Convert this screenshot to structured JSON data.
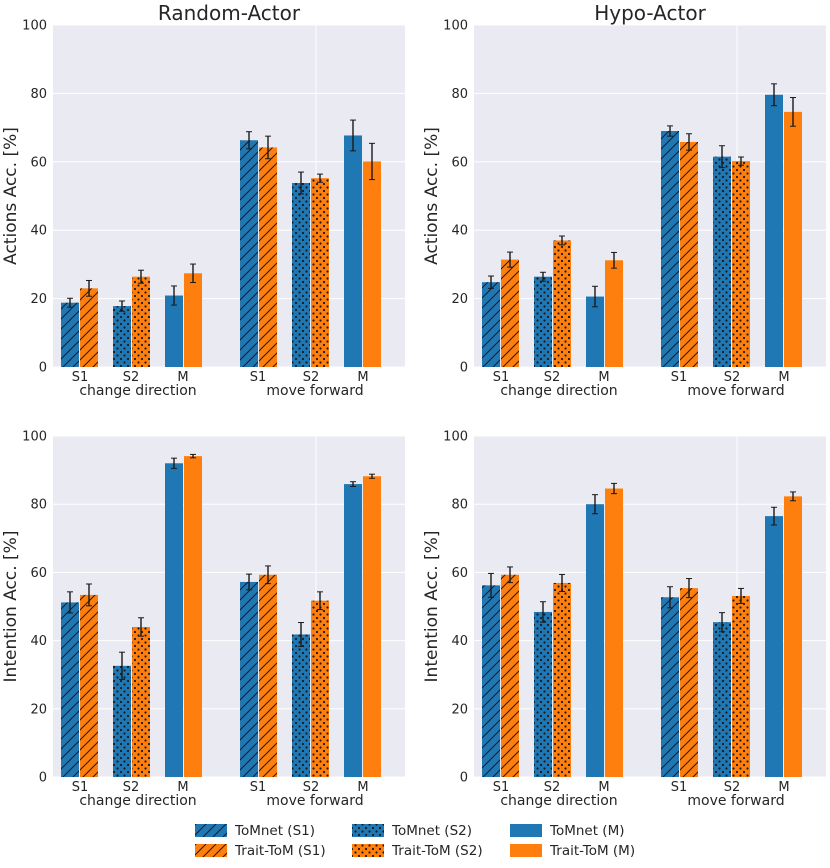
{
  "legend": {
    "items": [
      {
        "label": "ToMnet (S1)",
        "model": "tomnet",
        "hatch": "diag"
      },
      {
        "label": "ToMnet (S2)",
        "model": "tomnet",
        "hatch": "dots"
      },
      {
        "label": "ToMnet (M)",
        "model": "tomnet",
        "hatch": "none"
      },
      {
        "label": "Trait-ToM (S1)",
        "model": "trait",
        "hatch": "diag"
      },
      {
        "label": "Trait-ToM (S2)",
        "model": "trait",
        "hatch": "dots"
      },
      {
        "label": "Trait-ToM (M)",
        "model": "trait",
        "hatch": "none"
      }
    ]
  },
  "colors": {
    "tomnet": "#1f77b4",
    "trait": "#ff7f0e",
    "panel_bg": "#eaeaf2",
    "grid": "#ffffff"
  },
  "chart_data": [
    {
      "type": "bar",
      "id": "actions-random",
      "title": "Random-Actor",
      "ylabel": "Actions Acc. [%]",
      "ylim": [
        0,
        100
      ],
      "yticks": [
        "0",
        "20",
        "40",
        "60",
        "80",
        "100"
      ],
      "groups": [
        "change direction",
        "move forward"
      ],
      "subgroups": [
        "S1",
        "S2",
        "M"
      ],
      "series": [
        {
          "name": "ToMnet",
          "values": [
            18.8,
            17.8,
            20.9,
            66.3,
            53.8,
            67.7
          ],
          "err": [
            1.3,
            1.5,
            2.8,
            2.5,
            3.2,
            4.5
          ]
        },
        {
          "name": "Trait-ToM",
          "values": [
            23.0,
            26.4,
            27.4,
            64.2,
            55.2,
            60.1
          ],
          "err": [
            2.3,
            1.9,
            2.7,
            3.3,
            1.2,
            5.3
          ]
        }
      ]
    },
    {
      "type": "bar",
      "id": "actions-hypo",
      "title": "Hypo-Actor",
      "ylabel": "Actions Acc. [%]",
      "ylim": [
        0,
        100
      ],
      "yticks": [
        "0",
        "20",
        "40",
        "60",
        "80",
        "100"
      ],
      "groups": [
        "change direction",
        "move forward"
      ],
      "subgroups": [
        "S1",
        "S2",
        "M"
      ],
      "series": [
        {
          "name": "ToMnet",
          "values": [
            24.8,
            26.4,
            20.6,
            69.0,
            61.5,
            79.6
          ],
          "err": [
            1.8,
            1.3,
            3.0,
            1.5,
            3.2,
            3.2
          ]
        },
        {
          "name": "Trait-ToM",
          "values": [
            31.4,
            37.0,
            31.2,
            65.8,
            60.2,
            74.6
          ],
          "err": [
            2.2,
            1.3,
            2.3,
            2.4,
            1.2,
            4.2
          ]
        }
      ]
    },
    {
      "type": "bar",
      "id": "intention-random",
      "title": "",
      "ylabel": "Intention Acc. [%]",
      "ylim": [
        0,
        100
      ],
      "yticks": [
        "0",
        "20",
        "40",
        "60",
        "80",
        "100"
      ],
      "groups": [
        "change direction",
        "move forward"
      ],
      "subgroups": [
        "S1",
        "S2",
        "M"
      ],
      "series": [
        {
          "name": "ToMnet",
          "values": [
            51.2,
            32.6,
            92.0,
            57.2,
            41.8,
            85.9
          ],
          "err": [
            3.1,
            4.0,
            1.5,
            2.3,
            3.5,
            0.7
          ]
        },
        {
          "name": "Trait-ToM",
          "values": [
            53.4,
            44.0,
            94.1,
            59.3,
            51.7,
            88.2
          ],
          "err": [
            3.2,
            2.7,
            0.5,
            2.6,
            2.6,
            0.6
          ]
        }
      ]
    },
    {
      "type": "bar",
      "id": "intention-hypo",
      "title": "",
      "ylabel": "Intention Acc. [%]",
      "ylim": [
        0,
        100
      ],
      "yticks": [
        "0",
        "20",
        "40",
        "60",
        "80",
        "100"
      ],
      "groups": [
        "change direction",
        "move forward"
      ],
      "subgroups": [
        "S1",
        "S2",
        "M"
      ],
      "series": [
        {
          "name": "ToMnet",
          "values": [
            56.2,
            48.4,
            80.0,
            52.7,
            45.4,
            76.5
          ],
          "err": [
            3.5,
            3.0,
            2.8,
            3.1,
            2.8,
            2.6
          ]
        },
        {
          "name": "Trait-ToM",
          "values": [
            59.3,
            56.9,
            84.6,
            55.4,
            53.1,
            82.3
          ],
          "err": [
            2.3,
            2.5,
            1.5,
            2.8,
            2.2,
            1.3
          ]
        }
      ]
    }
  ]
}
